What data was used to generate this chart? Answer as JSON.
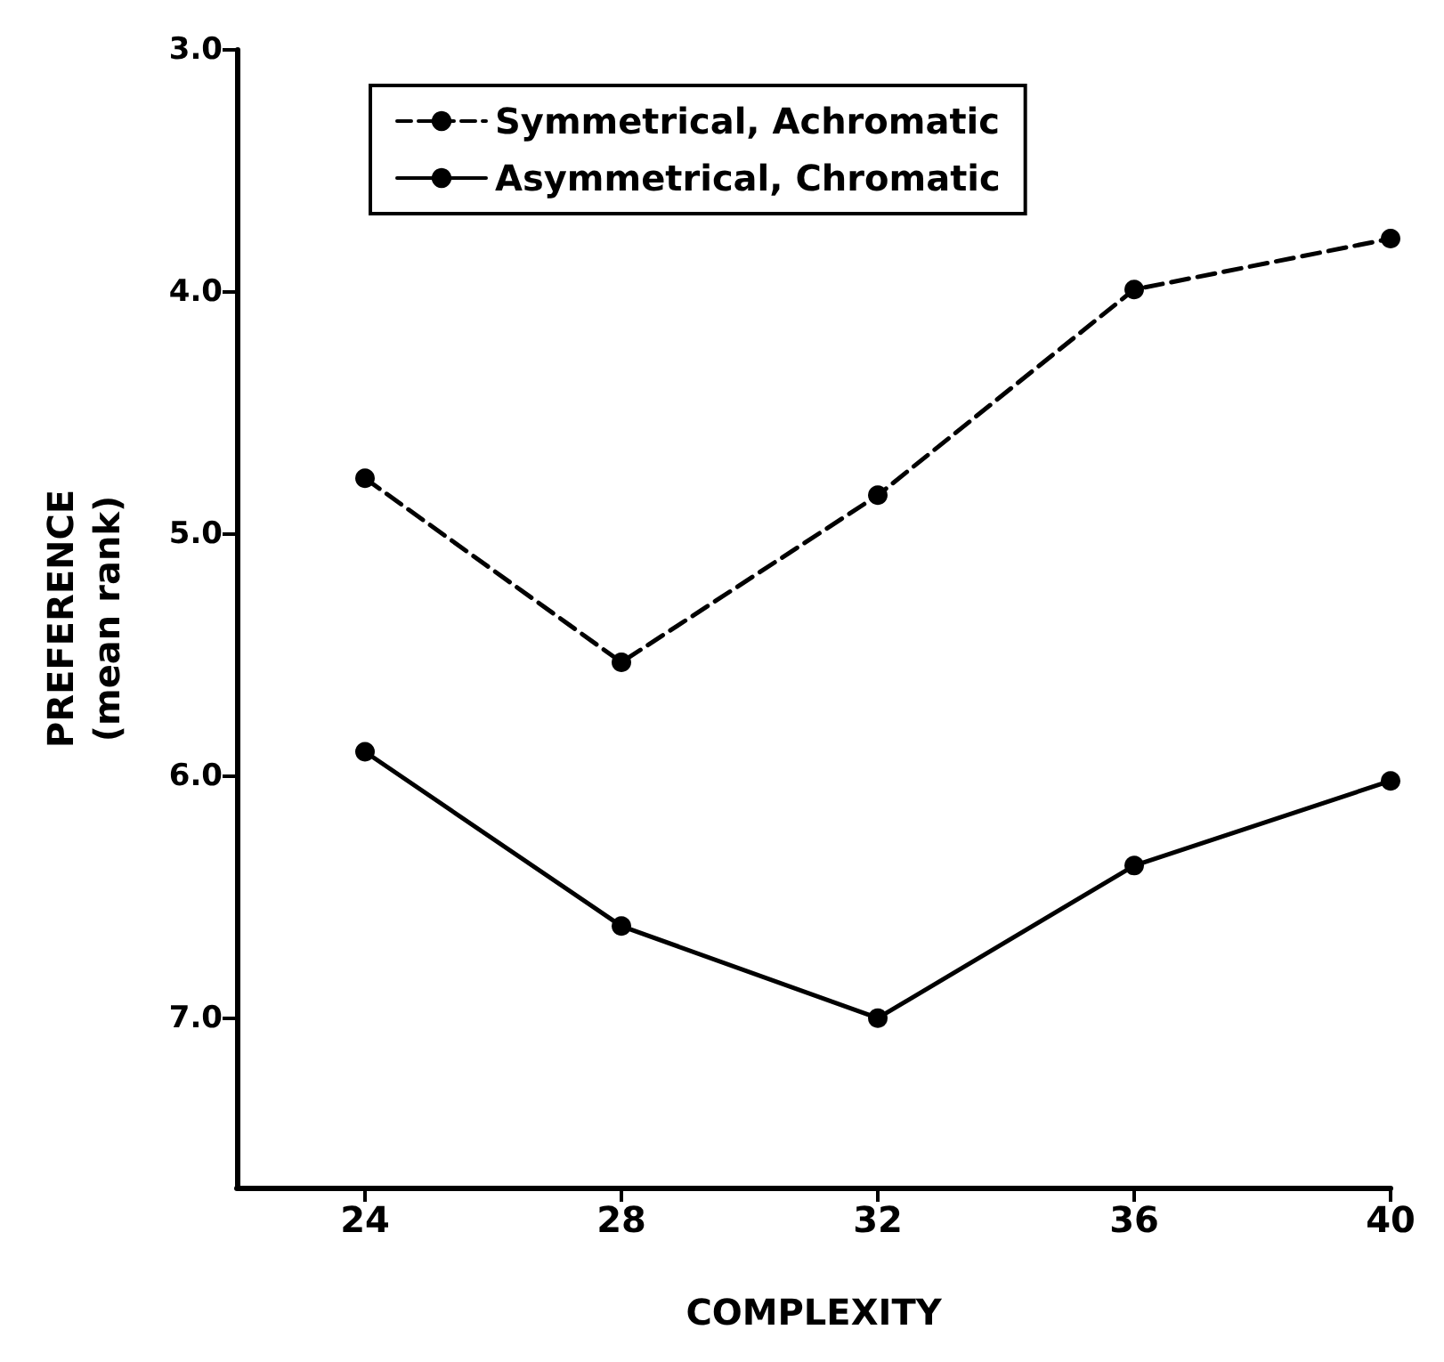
{
  "chart_data": {
    "type": "line",
    "xlabel": "COMPLEXITY",
    "ylabel": "PREFERENCE\n(mean rank)",
    "x": [
      24,
      28,
      32,
      36,
      40
    ],
    "series": [
      {
        "name": "Symmetrical, Achromatic",
        "color": "#000000",
        "line_style": "dashed",
        "values": [
          4.77,
          5.53,
          4.84,
          3.99,
          3.78
        ]
      },
      {
        "name": "Asymmetrical, Chromatic",
        "color": "#000000",
        "line_style": "solid",
        "values": [
          5.9,
          6.62,
          7.0,
          6.37,
          6.02
        ]
      }
    ],
    "xlim": [
      22,
      40
    ],
    "xticks": [
      24,
      28,
      32,
      36,
      40
    ],
    "ylim": [
      7.7,
      3.0
    ],
    "yticks": [
      {
        "value": 3,
        "label": "3.0"
      },
      {
        "value": 4,
        "label": "4.0"
      },
      {
        "value": 5,
        "label": "5.0"
      },
      {
        "value": 6,
        "label": "6.0"
      },
      {
        "value": 7,
        "label": "7.0"
      }
    ],
    "grid": false,
    "legend": "top left",
    "marker": "circle"
  }
}
